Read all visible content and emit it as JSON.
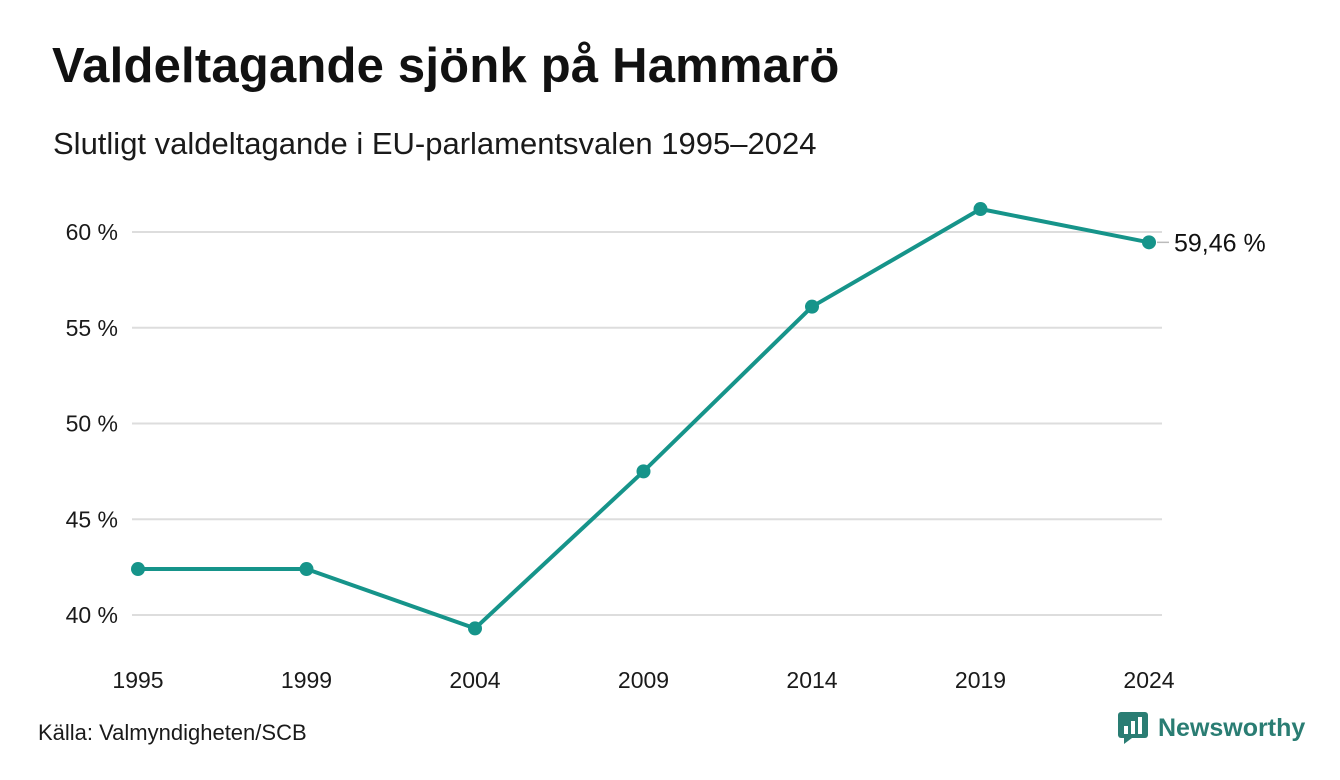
{
  "header": {
    "title": "Valdeltagande sjönk på Hammarö",
    "subtitle": "Slutligt valdeltagande i EU-parlamentsvalen 1995–2024"
  },
  "footer": {
    "source": "Källa: Valmyndigheten/SCB",
    "brand": "Newsworthy"
  },
  "colors": {
    "line": "#16948a",
    "grid": "#dddddd",
    "brand": "#2a7d73"
  },
  "chart_data": {
    "type": "line",
    "x": [
      "1995",
      "1999",
      "2004",
      "2009",
      "2014",
      "2019",
      "2024"
    ],
    "series": [
      {
        "values": [
          42.4,
          42.4,
          39.3,
          47.5,
          56.1,
          61.2,
          59.46
        ]
      }
    ],
    "ylim": [
      40,
      60
    ],
    "yticks": [
      40,
      45,
      50,
      55,
      60
    ],
    "ytick_labels": [
      "40 %",
      "45 %",
      "50 %",
      "55 %",
      "60 %"
    ],
    "end_label": "59,46 %",
    "grid": "horizontal"
  }
}
